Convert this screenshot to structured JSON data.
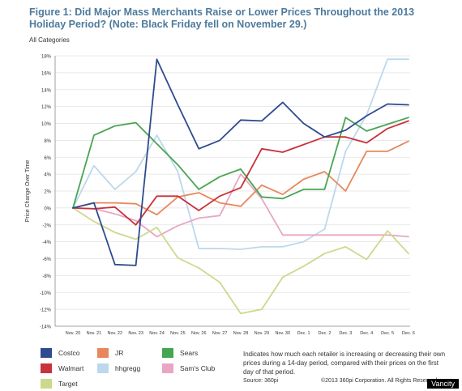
{
  "header": {
    "title": "Figure 1: Did Major Mass Merchants Raise or Lower Prices Throughout the 2013 Holiday Period? (Note: Black Friday fell on November 29.)",
    "subtitle": "All Categories"
  },
  "chart_data": {
    "type": "line",
    "title": "Figure 1: Did Major Mass Merchants Raise or Lower Prices Throughout the 2013 Holiday Period? (Note: Black Friday fell on November 29.)",
    "subtitle": "All Categories",
    "xlabel": "",
    "ylabel": "Price Change Over Time",
    "ylim": [
      -14,
      18
    ],
    "y_ticks": [
      "18%",
      "16%",
      "14%",
      "12%",
      "10%",
      "8%",
      "6%",
      "4%",
      "2%",
      "0%",
      "-2%",
      "-4%",
      "-6%",
      "-8%",
      "-10%",
      "-12%",
      "-14%"
    ],
    "y_tick_values": [
      18,
      16,
      14,
      12,
      10,
      8,
      6,
      4,
      2,
      0,
      -2,
      -4,
      -6,
      -8,
      -10,
      -12,
      -14
    ],
    "categories": [
      "Nov. 20",
      "Nov. 21",
      "Nov. 22",
      "Nov. 23",
      "Nov. 24",
      "Nov. 25",
      "Nov. 26",
      "Nov. 27",
      "Nov. 28",
      "Nov. 29",
      "Nov. 30",
      "Dec. 1",
      "Dec. 2",
      "Dec. 3",
      "Dec. 4",
      "Dec. 5",
      "Dec. 6"
    ],
    "grid": true,
    "legend_position": "bottom-left",
    "series": [
      {
        "name": "Costco",
        "color": "#2e4b8f",
        "values": [
          0,
          0.6,
          -6.7,
          -6.8,
          17.6,
          12.2,
          7.0,
          8.0,
          10.4,
          10.3,
          12.5,
          10.0,
          8.4,
          9.2,
          10.9,
          12.3,
          12.2
        ]
      },
      {
        "name": "JR",
        "color": "#e8875b",
        "values": [
          0,
          0.6,
          0.6,
          0.5,
          -0.8,
          1.3,
          1.8,
          0.6,
          0.2,
          2.7,
          1.6,
          3.4,
          4.3,
          2.0,
          6.7,
          6.7,
          7.9
        ]
      },
      {
        "name": "Sears",
        "color": "#46a552",
        "values": [
          0,
          8.6,
          9.7,
          10.1,
          7.6,
          5.1,
          2.2,
          3.7,
          4.6,
          1.3,
          1.1,
          2.2,
          2.2,
          10.7,
          9.1,
          9.9,
          10.7
        ]
      },
      {
        "name": "Walmart",
        "color": "#c8323a",
        "values": [
          0,
          -0.1,
          0.1,
          -2.0,
          1.4,
          1.4,
          -0.3,
          1.4,
          2.4,
          7.0,
          6.6,
          7.5,
          8.4,
          8.4,
          7.7,
          9.4,
          10.3
        ]
      },
      {
        "name": "hhgregg",
        "color": "#bcd8ec",
        "values": [
          0,
          5.0,
          2.2,
          4.3,
          8.6,
          4.3,
          -4.8,
          -4.8,
          -4.9,
          -4.6,
          -4.6,
          -4.0,
          -2.5,
          6.7,
          11.0,
          17.6,
          17.6
        ]
      },
      {
        "name": "Sam's Club",
        "color": "#e9a6c4",
        "values": [
          0,
          -0.1,
          -0.7,
          -1.5,
          -3.4,
          -2.1,
          -1.2,
          -0.9,
          4.0,
          1.1,
          -3.2,
          -3.2,
          -3.2,
          -3.2,
          -3.2,
          -3.2,
          -3.4
        ]
      },
      {
        "name": "Target",
        "color": "#cbd98c",
        "values": [
          0,
          -1.6,
          -2.9,
          -3.7,
          -2.3,
          -5.9,
          -7.1,
          -8.8,
          -12.5,
          -12.0,
          -8.2,
          -6.9,
          -5.4,
          -4.6,
          -6.1,
          -2.7,
          -5.4
        ]
      }
    ]
  },
  "legend": {
    "items": [
      {
        "label": "Costco",
        "color": "#2e4b8f"
      },
      {
        "label": "JR",
        "color": "#e8875b"
      },
      {
        "label": "Sears",
        "color": "#46a552"
      },
      {
        "label": "Walmart",
        "color": "#c8323a"
      },
      {
        "label": "hhgregg",
        "color": "#bcd8ec"
      },
      {
        "label": "Sam's Club",
        "color": "#e9a6c4"
      },
      {
        "label": "Target",
        "color": "#cbd98c"
      }
    ]
  },
  "footer": {
    "note": "Indicates how much each retailer is increasing or decreasing their own prices during a 14-day period, compared with their prices on the first day of that period.",
    "source": "Source: 360pi",
    "copyright": "©2013 360pi Corporation. All Rights Reserved.",
    "watermark": "Vancity"
  }
}
